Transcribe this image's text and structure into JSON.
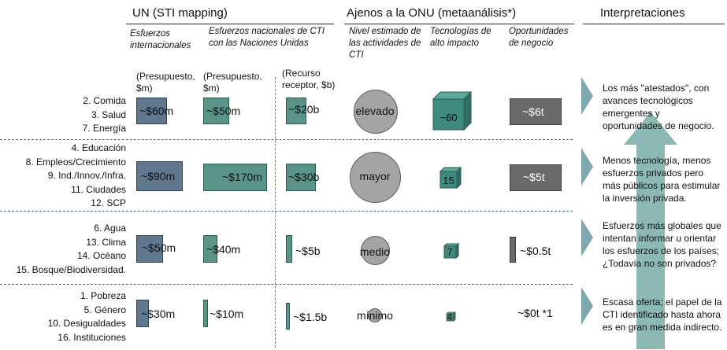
{
  "headers": {
    "un": "UN  (STI mapping)",
    "ajenos": "Ajenos a la ONU (metaanálisis*)",
    "interp": "Interpretaciones"
  },
  "subheaders": {
    "esfuerzos_int": "Esfuerzos internacionales",
    "esfuerzos_nac": "Esfuerzos nacionales de CTI con las Naciones Unidas",
    "nivel": "Nivel estimado de las actividades de CTI",
    "tecnologias": "Tecnologías de alto impacto",
    "oportunidades": "Oportunidades de negocio"
  },
  "units": {
    "presupuesto1": "(Presupuesto, $m)",
    "presupuesto2": "(Presupuesto, $m)",
    "recurso": "(Recurso receptor, $b)"
  },
  "rows": [
    {
      "labels": [
        "2. Comida",
        "3. Salud",
        "7. Energía"
      ],
      "int_budget": "~$60m",
      "int_value_m": 60,
      "nac_budget": "~$50m",
      "nac_value_m": 50,
      "recurso": "~$20b",
      "recurso_value_b": 20,
      "nivel": "elevado",
      "tech": "~60",
      "tech_value": 60,
      "oport": "~$6t",
      "oport_value_t": 6,
      "interp": "Los más \"atestados\", con avances tecnológicos emergentes y oportunidades de negocio."
    },
    {
      "labels": [
        "4. Educación",
        "8. Empleos/Crecimiento",
        "9. Ind./Innov./Infra.",
        "11. Ciudades",
        "12. SCP"
      ],
      "int_budget": "~$90m",
      "int_value_m": 90,
      "nac_budget": "~$170m",
      "nac_value_m": 170,
      "recurso": "~$30b",
      "recurso_value_b": 30,
      "nivel": "mayor",
      "tech": "15",
      "tech_value": 15,
      "oport": "~$5t",
      "oport_value_t": 5,
      "interp": "Menos tecnología, menos esfuerzos privados pero más públicos para estimular la inversión privada."
    },
    {
      "labels": [
        "6. Agua",
        "13. Clima",
        "14. Océano",
        "15. Bosque/Biodiversidad."
      ],
      "int_budget": "~$50m",
      "int_value_m": 50,
      "nac_budget": "~$40m",
      "nac_value_m": 40,
      "recurso": "~$5b",
      "recurso_value_b": 5,
      "nivel": "medio",
      "tech": "7",
      "tech_value": 7,
      "oport": "~$0.5t",
      "oport_value_t": 0.5,
      "interp": "Esfuerzos más globales que intentan informar u orientar los esfuerzos de los países; ¿Todavía no son privados?"
    },
    {
      "labels": [
        "1. Pobreza",
        "5. Género",
        "10. Desigualdades",
        "16. Instituciones"
      ],
      "int_budget": "~$30m",
      "int_value_m": 30,
      "nac_budget": "~$10m",
      "nac_value_m": 10,
      "recurso": "~$1.5b",
      "recurso_value_b": 1.5,
      "nivel": "mínimo",
      "tech": "4",
      "tech_value": 4,
      "oport": "~$0t *1",
      "oport_value_t": 0,
      "interp": "Escasa oferta; el papel de la CTI identificado hasta ahora es en gran medida indirecto."
    }
  ],
  "colors": {
    "int_bar": "#5f7890",
    "nac_bar": "#5a9488",
    "cube": "#3f8a7e",
    "circle": "#a4a4a4",
    "oport_box": "#6a6a6a",
    "chevron": "#7fa7ae",
    "arrow": "#7fb1ac",
    "separator": "#3a6a8c"
  }
}
